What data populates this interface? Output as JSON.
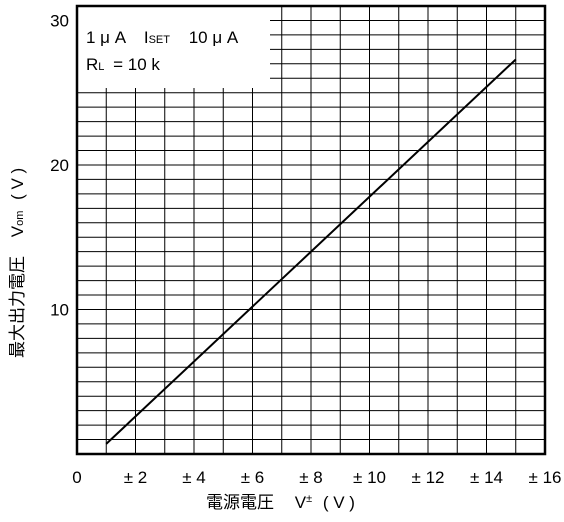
{
  "chart_data": {
    "type": "line",
    "x_tick_labels": [
      "0",
      "± 2",
      "± 4",
      "± 6",
      "± 8",
      "± 10",
      "± 12",
      "± 14",
      "± 16"
    ],
    "y_tick_labels": [
      "10",
      "20",
      "30"
    ],
    "y_tick_values": [
      10,
      20,
      30
    ],
    "xlim": [
      0,
      16
    ],
    "ylim": [
      0,
      31
    ],
    "grid": true,
    "x": [
      1,
      15
    ],
    "y": [
      0.7,
      27.3
    ],
    "ylabel": {
      "main": "最大出力電圧",
      "sym": "V",
      "sub": "om",
      "unit": "( V )"
    },
    "xlabel": {
      "main": "電源電圧",
      "sym": "V",
      "sup": "±",
      "unit": "( V )"
    },
    "annotation": {
      "line1": "1 μ A",
      "isym": "I",
      "isub": "SET",
      "imax": "10 μ A",
      "rsym": "R",
      "rsub": "L",
      "rval": "= 10 k"
    }
  }
}
